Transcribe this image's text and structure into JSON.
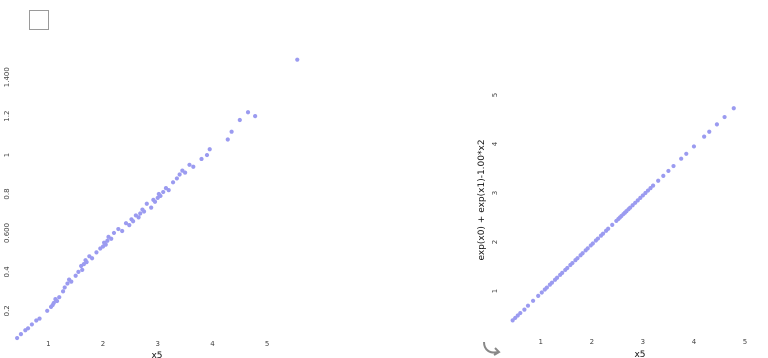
{
  "controls": {
    "checkbox_checked": false,
    "point_color": "#9b9bf0",
    "reset_icon": "curved-arrow-icon"
  },
  "chart_data": [
    {
      "type": "scatter",
      "title": "",
      "xlabel": "x5",
      "ylabel": "",
      "xlim": [
        0.3,
        5.6
      ],
      "ylim": [
        0.05,
        1.55
      ],
      "x_ticks": [
        1,
        2,
        3,
        4,
        5
      ],
      "x_tick_labels": [
        "1",
        "2",
        "3",
        "4",
        "5"
      ],
      "y_ticks": [
        0.2,
        0.4,
        0.6,
        0.8,
        1.0,
        1.2,
        1.4
      ],
      "y_tick_labels": [
        "0.2",
        "0.4",
        "0.600",
        "0.8",
        "1",
        "1.2",
        "1.400"
      ],
      "grid": false,
      "series": [
        {
          "x": [
            0.43,
            0.5,
            0.58,
            0.63,
            0.7,
            0.78,
            0.84,
            0.98,
            1.05,
            1.08,
            1.1,
            1.13,
            1.16,
            1.2,
            1.27,
            1.3,
            1.35,
            1.38,
            1.42,
            1.5,
            1.55,
            1.6,
            1.62,
            1.65,
            1.68,
            1.7,
            1.75,
            1.8,
            1.88,
            1.95,
            2.0,
            2.02,
            2.05,
            2.08,
            2.1,
            2.15,
            2.2,
            2.28,
            2.35,
            2.42,
            2.48,
            2.52,
            2.55,
            2.6,
            2.65,
            2.68,
            2.72,
            2.75,
            2.8,
            2.88,
            2.92,
            2.95,
            3.0,
            3.02,
            3.05,
            3.1,
            3.15,
            3.2,
            3.28,
            3.35,
            3.4,
            3.45,
            3.5,
            3.58,
            3.65,
            3.8,
            3.9,
            3.95,
            4.28,
            4.35,
            4.5,
            4.65,
            4.78,
            5.55
          ],
          "y": [
            0.06,
            0.08,
            0.1,
            0.11,
            0.13,
            0.15,
            0.16,
            0.2,
            0.22,
            0.23,
            0.24,
            0.26,
            0.25,
            0.27,
            0.3,
            0.32,
            0.34,
            0.36,
            0.35,
            0.38,
            0.4,
            0.43,
            0.41,
            0.44,
            0.46,
            0.45,
            0.48,
            0.47,
            0.5,
            0.52,
            0.53,
            0.55,
            0.54,
            0.56,
            0.58,
            0.57,
            0.6,
            0.62,
            0.61,
            0.65,
            0.64,
            0.67,
            0.66,
            0.69,
            0.68,
            0.7,
            0.72,
            0.71,
            0.75,
            0.73,
            0.77,
            0.76,
            0.78,
            0.8,
            0.79,
            0.81,
            0.83,
            0.82,
            0.86,
            0.88,
            0.9,
            0.92,
            0.91,
            0.95,
            0.94,
            0.98,
            1.0,
            1.03,
            1.08,
            1.12,
            1.18,
            1.22,
            1.2,
            1.49
          ]
        }
      ]
    },
    {
      "type": "scatter",
      "title": "",
      "xlabel": "x5",
      "ylabel": "exp(x0) + exp(x1)-1.00*x2",
      "xlim": [
        0.3,
        5.0
      ],
      "ylim": [
        0.0,
        5.0
      ],
      "x_ticks": [
        1,
        2,
        3,
        4,
        5
      ],
      "x_tick_labels": [
        "1",
        "2",
        "3",
        "4",
        "5"
      ],
      "y_ticks": [
        1,
        2,
        3,
        4,
        5
      ],
      "y_tick_labels": [
        "1",
        "2",
        "3",
        "4",
        "5"
      ],
      "grid": false,
      "series": [
        {
          "x": [
            0.45,
            0.5,
            0.55,
            0.6,
            0.68,
            0.75,
            0.85,
            0.95,
            1.02,
            1.08,
            1.12,
            1.18,
            1.22,
            1.28,
            1.32,
            1.38,
            1.42,
            1.48,
            1.52,
            1.58,
            1.62,
            1.68,
            1.72,
            1.78,
            1.82,
            1.88,
            1.92,
            1.98,
            2.02,
            2.08,
            2.12,
            2.18,
            2.22,
            2.28,
            2.32,
            2.4,
            2.48,
            2.52,
            2.55,
            2.58,
            2.62,
            2.65,
            2.68,
            2.72,
            2.75,
            2.8,
            2.85,
            2.9,
            2.95,
            3.0,
            3.05,
            3.1,
            3.15,
            3.2,
            3.3,
            3.4,
            3.5,
            3.6,
            3.75,
            3.85,
            4.0,
            4.2,
            4.3,
            4.45,
            4.6,
            4.78
          ],
          "y": [
            0.4,
            0.45,
            0.5,
            0.55,
            0.62,
            0.7,
            0.8,
            0.9,
            0.97,
            1.03,
            1.07,
            1.13,
            1.17,
            1.23,
            1.27,
            1.33,
            1.37,
            1.43,
            1.47,
            1.53,
            1.57,
            1.63,
            1.67,
            1.73,
            1.77,
            1.83,
            1.87,
            1.93,
            1.97,
            2.03,
            2.07,
            2.13,
            2.17,
            2.23,
            2.27,
            2.35,
            2.43,
            2.47,
            2.5,
            2.53,
            2.57,
            2.6,
            2.63,
            2.67,
            2.7,
            2.75,
            2.8,
            2.85,
            2.9,
            2.95,
            3.0,
            3.05,
            3.1,
            3.15,
            3.25,
            3.35,
            3.45,
            3.55,
            3.7,
            3.8,
            3.95,
            4.15,
            4.25,
            4.4,
            4.55,
            4.73
          ]
        }
      ]
    }
  ]
}
